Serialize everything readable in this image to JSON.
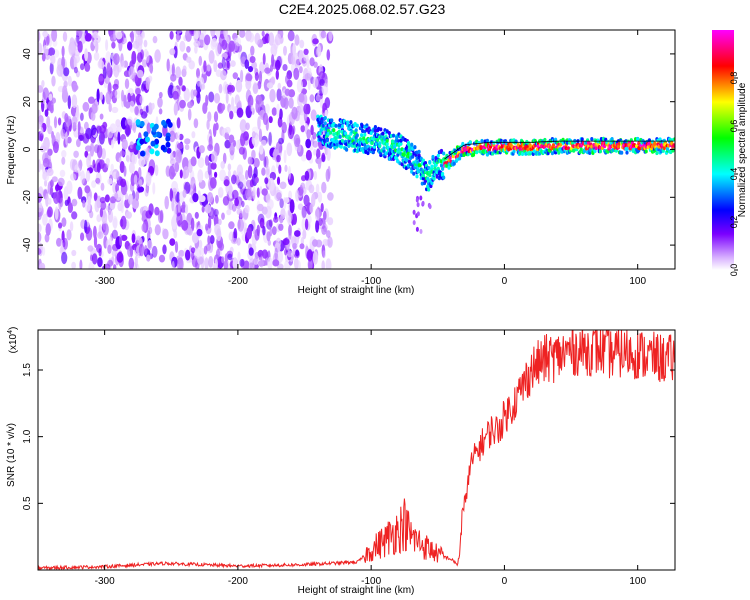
{
  "title": "C2E4.2025.068.02.57.G23",
  "chart_data": [
    {
      "type": "heatmap",
      "xlabel": "Height of straight line (km)",
      "ylabel": "Frequency (Hz)",
      "xlim": [
        -350,
        128
      ],
      "ylim": [
        -50,
        50
      ],
      "xticks": [
        -300,
        -200,
        -100,
        0,
        100
      ],
      "yticks": [
        -40,
        -20,
        0,
        20,
        40
      ],
      "colorbar": {
        "label": "Normalized spectral amplitude",
        "range": [
          0,
          1
        ],
        "ticks": [
          0.0,
          0.2,
          0.4,
          0.6,
          0.8
        ],
        "colormap": [
          "#ffffff",
          "#7b00ff",
          "#0000ff",
          "#00ffff",
          "#00ff00",
          "#ffff00",
          "#ff0000",
          "#ff00ff"
        ]
      },
      "ridge": {
        "x": [
          -140,
          -120,
          -100,
          -80,
          -65,
          -58,
          -52,
          -45,
          -30,
          -10,
          0,
          20,
          40,
          60,
          80,
          100,
          128
        ],
        "y": [
          8,
          6,
          4,
          1,
          -6,
          -12,
          -7,
          -6,
          0,
          1,
          1,
          1,
          1.5,
          1.5,
          1.5,
          1.5,
          1.5
        ]
      },
      "noise_region": {
        "x_start": -350,
        "x_end": -130
      }
    },
    {
      "type": "line",
      "xlabel": "Height of straight line (km)",
      "ylabel": "SNR (10 * v/v)",
      "y_multiplier_label": "(x10",
      "y_multiplier_exp": "4",
      "xlim": [
        -350,
        128
      ],
      "ylim": [
        0,
        18000
      ],
      "xticks": [
        -300,
        -200,
        -100,
        0,
        100
      ],
      "yticks": [
        5000,
        10000,
        15000
      ],
      "ytick_labels": [
        "0.5",
        "1.0",
        "1.5"
      ],
      "color": "#ee2222",
      "series": [
        {
          "x": [
            -350,
            -300,
            -255,
            -200,
            -150,
            -110,
            -100,
            -90,
            -80,
            -75,
            -70,
            -60,
            -50,
            -40,
            -35,
            -30,
            -25,
            -20,
            -15,
            -10,
            -5,
            0,
            10,
            20,
            30,
            40,
            50,
            60,
            70,
            80,
            90,
            100,
            110,
            120,
            128
          ],
          "y": [
            150,
            250,
            500,
            300,
            400,
            600,
            1500,
            2200,
            3000,
            3500,
            2500,
            1800,
            1200,
            800,
            400,
            5000,
            8000,
            9000,
            9800,
            10500,
            10500,
            11500,
            13000,
            15000,
            15800,
            16000,
            16500,
            16500,
            16500,
            16200,
            16300,
            16200,
            16000,
            15800,
            15800
          ]
        }
      ]
    }
  ]
}
